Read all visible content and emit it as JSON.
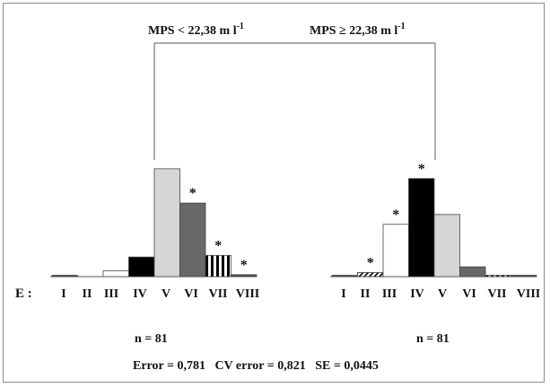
{
  "split": {
    "left_label": "MPS < 22,38 m l",
    "right_label": "MPS ≥ 22,38 m l",
    "superscript": "-1"
  },
  "axis_prefix": "E :",
  "categories": [
    "I",
    "II",
    "III",
    "IV",
    "V",
    "VI",
    "VII",
    "VIII"
  ],
  "left_node": {
    "values": [
      0.8,
      0,
      3.5,
      12,
      66,
      45,
      13,
      1.2
    ],
    "marked": [
      "VI",
      "VII",
      "VIII"
    ],
    "n_label": "n = 81"
  },
  "right_node": {
    "values": [
      0.3,
      2.5,
      32,
      60,
      38,
      6,
      0.5,
      0.2
    ],
    "marked": [
      "II",
      "III",
      "IV"
    ],
    "n_label": "n = 81"
  },
  "footer": "Error = 0,781   CV error = 0,821   SE = 0,0445",
  "marker": "*",
  "colors": {
    "I": "#555555",
    "II": "#ffffff",
    "III": "#ffffff",
    "IV": "#000000",
    "V": "#d6d6d6",
    "VI": "#686868",
    "VII": "#ffffff",
    "VIII": "#555555"
  }
}
